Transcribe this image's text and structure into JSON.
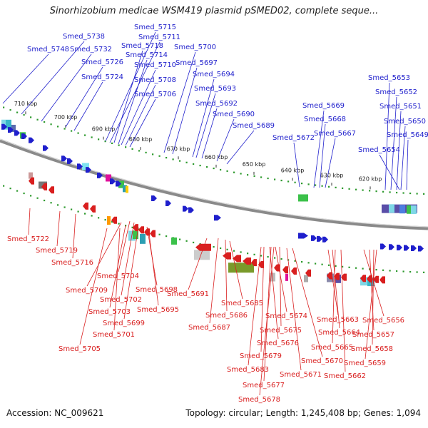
{
  "header": {
    "title": "Sinorhizobium medicae WSM419 plasmid pSMED02, complete seque..."
  },
  "footer": {
    "accession": "Accession: NC_009621",
    "summary": "Topology: circular; Length: 1,245,408 bp; Genes: 1,094"
  },
  "colors": {
    "forward": "#1f1fcc",
    "reverse": "#d91f1f",
    "backbone": "#8a8a8a",
    "dots": "#2e9a2e"
  },
  "scale": {
    "ticks": [
      "710 kbp",
      "700 kbp",
      "690 kbp",
      "680 kbp",
      "670 kbp",
      "660 kbp",
      "650 kbp",
      "640 kbp",
      "630 kbp",
      "620 kbp"
    ]
  },
  "genes": {
    "forward": [
      "Smed_5748",
      "Smed_5738",
      "Smed_5732",
      "Smed_5726",
      "Smed_5724",
      "Smed_5715",
      "Smed_5711",
      "Smed_5718",
      "Smed_5714",
      "Smed_5710",
      "Smed_5708",
      "Smed_5706",
      "Smed_5700",
      "Smed_5697",
      "Smed_5694",
      "Smed_5693",
      "Smed_5692",
      "Smed_5690",
      "Smed_5689",
      "Smed_5672",
      "Smed_5669",
      "Smed_5668",
      "Smed_5667",
      "Smed_5653",
      "Smed_5652",
      "Smed_5651",
      "Smed_5650",
      "Smed_5649",
      "Smed_5654"
    ],
    "reverse": [
      "Smed_5722",
      "Smed_5719",
      "Smed_5716",
      "Smed_5704",
      "Smed_5709",
      "Smed_5702",
      "Smed_5698",
      "Smed_5703",
      "Smed_5699",
      "Smed_5695",
      "Smed_5701",
      "Smed_5705",
      "Smed_5691",
      "Smed_5685",
      "Smed_5686",
      "Smed_5687",
      "Smed_5674",
      "Smed_5675",
      "Smed_5676",
      "Smed_5679",
      "Smed_5670",
      "Smed_5683",
      "Smed_5671",
      "Smed_5677",
      "Smed_5678",
      "Smed_5663",
      "Smed_5664",
      "Smed_5665",
      "Smed_5662",
      "Smed_5656",
      "Smed_5657",
      "Smed_5658",
      "Smed_5659"
    ]
  }
}
